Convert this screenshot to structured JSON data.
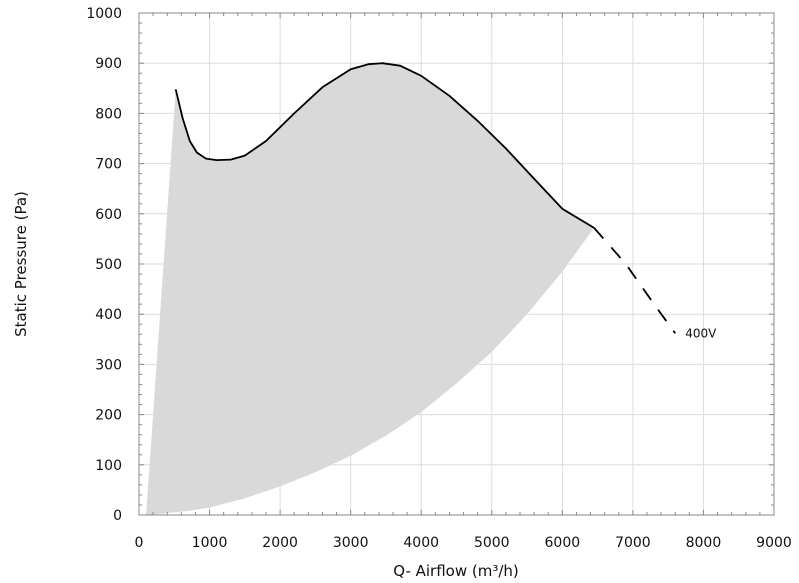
{
  "chart_data": {
    "type": "line",
    "title": "",
    "xlabel": "Q- Airflow (m³/h)",
    "ylabel": "Static Pressure (Pa)",
    "xlim": [
      0,
      9000
    ],
    "ylim": [
      0,
      1000
    ],
    "x_ticks": [
      0,
      1000,
      2000,
      3000,
      4000,
      5000,
      6000,
      7000,
      8000,
      9000
    ],
    "y_ticks": [
      0,
      100,
      200,
      300,
      400,
      500,
      600,
      700,
      800,
      900,
      1000
    ],
    "grid": true,
    "colors": {
      "curve": "#000000",
      "area": "#d9d9d9",
      "grid": "#dcdcdc",
      "frame": "#888888"
    },
    "series": [
      {
        "name": "400V",
        "solid": {
          "x": [
            520,
            620,
            720,
            820,
            950,
            1100,
            1300,
            1500,
            1800,
            2200,
            2600,
            3000,
            3250,
            3450,
            3700,
            4000,
            4400,
            4800,
            5200,
            5600,
            6000,
            6450
          ],
          "y": [
            848,
            790,
            745,
            722,
            710,
            707,
            708,
            716,
            745,
            800,
            852,
            888,
            898,
            900,
            895,
            875,
            835,
            785,
            730,
            670,
            610,
            572
          ]
        },
        "dashed": {
          "x": [
            6450,
            6900,
            7300,
            7600
          ],
          "y": [
            572,
            500,
            420,
            362
          ]
        }
      }
    ],
    "operating_area": {
      "upper_x": [
        520,
        620,
        720,
        820,
        950,
        1100,
        1300,
        1500,
        1800,
        2200,
        2600,
        3000,
        3250,
        3450,
        3700,
        4000,
        4400,
        4800,
        5200,
        5600,
        6000,
        6450
      ],
      "upper_y": [
        848,
        790,
        745,
        722,
        710,
        707,
        708,
        716,
        745,
        800,
        852,
        888,
        898,
        900,
        895,
        875,
        835,
        785,
        730,
        670,
        610,
        572
      ],
      "lower_x": [
        6450,
        6000,
        5500,
        5000,
        4500,
        4000,
        3500,
        3000,
        2500,
        2000,
        1500,
        1000,
        700,
        400,
        300,
        200,
        100
      ],
      "lower_y": [
        572,
        485,
        400,
        325,
        262,
        205,
        158,
        118,
        85,
        57,
        33,
        15,
        8,
        4,
        2,
        1,
        0
      ]
    }
  }
}
